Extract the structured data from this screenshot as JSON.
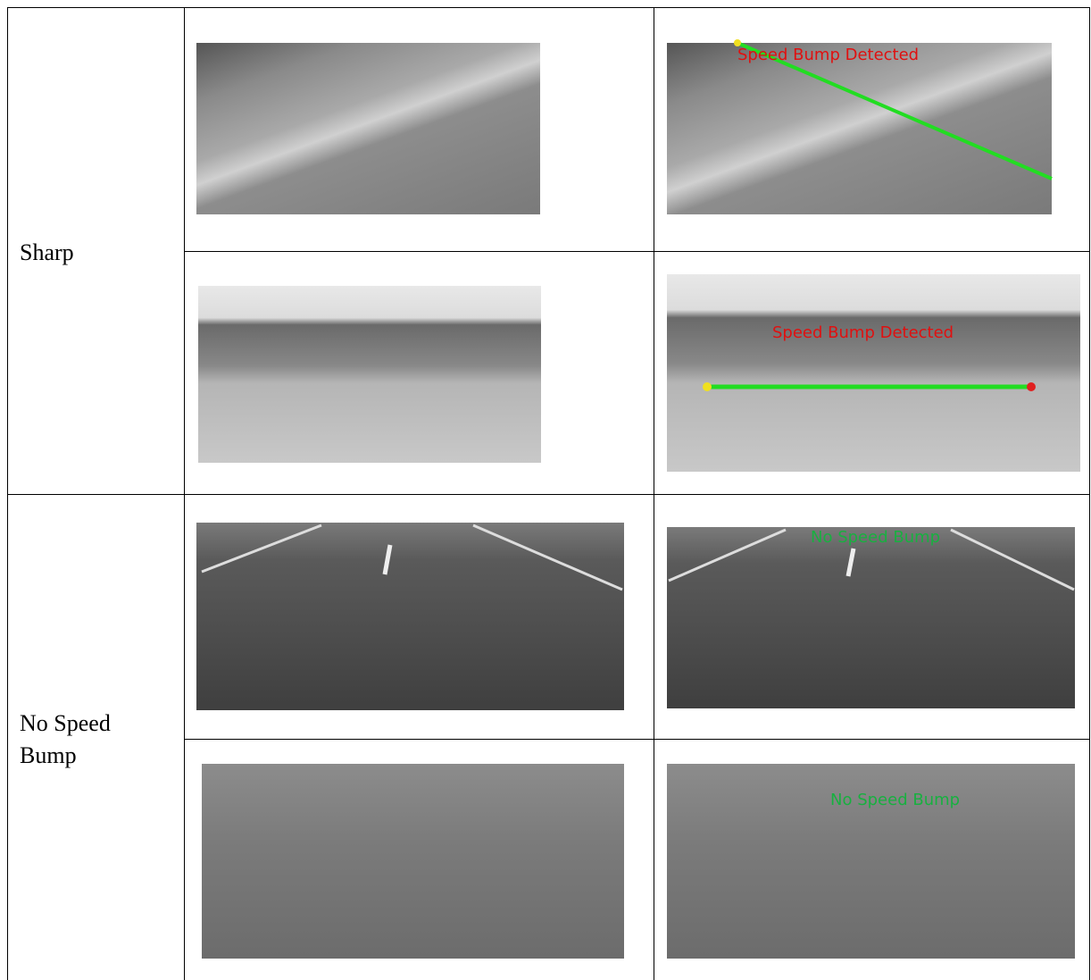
{
  "table": {
    "groups": [
      {
        "label": "Sharp",
        "overlays": [
          "Speed Bump Detected",
          "Speed Bump Detected"
        ]
      },
      {
        "label": "No Speed Bump",
        "overlays": [
          "No Speed Bump",
          "No Speed Bump"
        ]
      }
    ]
  }
}
